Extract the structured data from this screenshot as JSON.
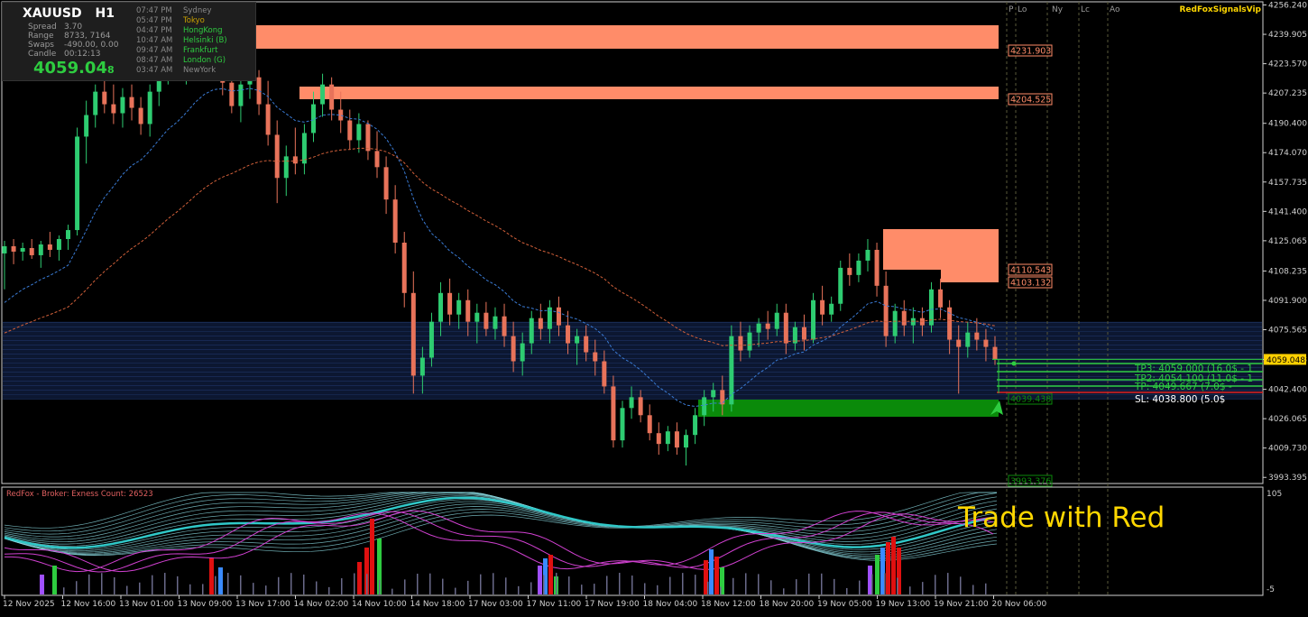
{
  "header": {
    "symbol": "XAUUSD",
    "timeframe": "H1",
    "spread_label": "Spread",
    "spread_value": "3.70",
    "range_label": "Range",
    "range_value": "8733, 7164",
    "swaps_label": "Swaps",
    "swaps_value": "-490.00, 0.00",
    "candle_label": "Candle",
    "candle_value": "00:12:13",
    "price_main": "4059.04",
    "price_small": "8"
  },
  "sessions": [
    {
      "time": "07:47 PM",
      "name": "Sydney",
      "color": "#888888"
    },
    {
      "time": "05:47 PM",
      "name": "Tokyo",
      "color": "#c8a000"
    },
    {
      "time": "04:47 PM",
      "name": "HongKong",
      "color": "#2ecc40"
    },
    {
      "time": "10:47 AM",
      "name": "Helsinki  (B)",
      "color": "#2ecc40"
    },
    {
      "time": "09:47 AM",
      "name": "Frankfurt",
      "color": "#2ecc40"
    },
    {
      "time": "08:47 AM",
      "name": "London  (G)",
      "color": "#2ecc40"
    },
    {
      "time": "03:47 AM",
      "name": "NewYork",
      "color": "#888888"
    }
  ],
  "brand": "RedFoxSignalsVip",
  "session_markers": [
    "P",
    "Lo",
    "Ny",
    "Lc",
    "Ao"
  ],
  "price_axis": [
    "4256.240",
    "4239.905",
    "4223.570",
    "4207.235",
    "4190.400",
    "4174.070",
    "4157.735",
    "4141.400",
    "4125.065",
    "4108.235",
    "4091.900",
    "4075.565",
    "4059.048",
    "4042.400",
    "4026.065",
    "4009.730",
    "3993.395"
  ],
  "current_price": "4059.048",
  "levels": {
    "r1": "4231.903",
    "r2": "4204.525",
    "r3": "4110.543",
    "r4": "4103.132",
    "s1": "4039.438",
    "s2": "3993.376"
  },
  "signals": {
    "tp3": "TP3: 4059.000 (16.0$ - 1",
    "tp2": "TP2: 4054.100 (11.0$ - 1",
    "tp1": "TP: 4049.667 (7.0$ -",
    "sl": "SL: 4038.800 (5.0$"
  },
  "time_axis": [
    "12 Nov 2025",
    "12 Nov 16:00",
    "13 Nov 01:00",
    "13 Nov 09:00",
    "13 Nov 17:00",
    "14 Nov 02:00",
    "14 Nov 10:00",
    "14 Nov 18:00",
    "17 Nov 03:00",
    "17 Nov 11:00",
    "17 Nov 19:00",
    "18 Nov 04:00",
    "18 Nov 12:00",
    "18 Nov 20:00",
    "19 Nov 05:00",
    "19 Nov 13:00",
    "19 Nov 21:00",
    "20 Nov 06:00"
  ],
  "indicator": {
    "label": "RedFox -  Broker: Exness   Count: 26523",
    "scale_top": "105",
    "scale_bottom": "-5",
    "overlay_text": "Trade with Red"
  },
  "colors": {
    "bull": "#2ecc71",
    "bear": "#e8735a",
    "zone": "#ff8c69",
    "demand": "#0a8a0a",
    "fast_ma": "#3a7bd5",
    "slow_ma": "#d2603a"
  },
  "chart_data": {
    "type": "candlestick",
    "ylim": [
      3990,
      4258
    ],
    "candles": [
      [
        4118,
        4125,
        4098,
        4122
      ],
      [
        4122,
        4126,
        4112,
        4119
      ],
      [
        4119,
        4124,
        4114,
        4121
      ],
      [
        4121,
        4126,
        4115,
        4117
      ],
      [
        4117,
        4125,
        4110,
        4123
      ],
      [
        4123,
        4130,
        4116,
        4120
      ],
      [
        4120,
        4128,
        4114,
        4126
      ],
      [
        4126,
        4134,
        4120,
        4131
      ],
      [
        4131,
        4188,
        4128,
        4183
      ],
      [
        4183,
        4203,
        4168,
        4195
      ],
      [
        4195,
        4212,
        4188,
        4208
      ],
      [
        4208,
        4218,
        4196,
        4201
      ],
      [
        4201,
        4212,
        4190,
        4196
      ],
      [
        4196,
        4210,
        4188,
        4205
      ],
      [
        4205,
        4212,
        4192,
        4199
      ],
      [
        4199,
        4205,
        4184,
        4190
      ],
      [
        4190,
        4212,
        4183,
        4208
      ],
      [
        4208,
        4226,
        4200,
        4221
      ],
      [
        4221,
        4230,
        4212,
        4225
      ],
      [
        4225,
        4235,
        4216,
        4218
      ],
      [
        4218,
        4234,
        4212,
        4230
      ],
      [
        4230,
        4246,
        4224,
        4240
      ],
      [
        4240,
        4249,
        4230,
        4235
      ],
      [
        4235,
        4244,
        4220,
        4226
      ],
      [
        4226,
        4236,
        4206,
        4213
      ],
      [
        4213,
        4222,
        4196,
        4200
      ],
      [
        4200,
        4217,
        4191,
        4212
      ],
      [
        4212,
        4222,
        4204,
        4216
      ],
      [
        4216,
        4220,
        4195,
        4201
      ],
      [
        4201,
        4214,
        4178,
        4184
      ],
      [
        4184,
        4192,
        4146,
        4160
      ],
      [
        4160,
        4178,
        4150,
        4172
      ],
      [
        4172,
        4188,
        4162,
        4168
      ],
      [
        4168,
        4190,
        4162,
        4185
      ],
      [
        4185,
        4208,
        4180,
        4201
      ],
      [
        4201,
        4218,
        4194,
        4212
      ],
      [
        4212,
        4216,
        4192,
        4198
      ],
      [
        4198,
        4208,
        4185,
        4192
      ],
      [
        4192,
        4198,
        4176,
        4181
      ],
      [
        4181,
        4196,
        4174,
        4190
      ],
      [
        4190,
        4192,
        4170,
        4175
      ],
      [
        4175,
        4186,
        4160,
        4166
      ],
      [
        4166,
        4172,
        4140,
        4148
      ],
      [
        4148,
        4156,
        4118,
        4124
      ],
      [
        4124,
        4130,
        4088,
        4096
      ],
      [
        4096,
        4108,
        4040,
        4050
      ],
      [
        4050,
        4066,
        4040,
        4060
      ],
      [
        4060,
        4085,
        4055,
        4080
      ],
      [
        4080,
        4102,
        4072,
        4096
      ],
      [
        4096,
        4104,
        4078,
        4084
      ],
      [
        4084,
        4096,
        4076,
        4092
      ],
      [
        4092,
        4098,
        4072,
        4080
      ],
      [
        4080,
        4090,
        4068,
        4085
      ],
      [
        4085,
        4091,
        4072,
        4076
      ],
      [
        4076,
        4088,
        4070,
        4083
      ],
      [
        4083,
        4090,
        4066,
        4072
      ],
      [
        4072,
        4080,
        4052,
        4058
      ],
      [
        4058,
        4074,
        4050,
        4068
      ],
      [
        4068,
        4086,
        4062,
        4082
      ],
      [
        4082,
        4090,
        4070,
        4076
      ],
      [
        4076,
        4092,
        4068,
        4088
      ],
      [
        4088,
        4094,
        4072,
        4078
      ],
      [
        4078,
        4086,
        4062,
        4068
      ],
      [
        4068,
        4076,
        4056,
        4072
      ],
      [
        4072,
        4078,
        4058,
        4063
      ],
      [
        4063,
        4070,
        4050,
        4058
      ],
      [
        4058,
        4064,
        4040,
        4044
      ],
      [
        4044,
        4050,
        4010,
        4014
      ],
      [
        4014,
        4036,
        4010,
        4032
      ],
      [
        4032,
        4044,
        4026,
        4038
      ],
      [
        4038,
        4042,
        4024,
        4028
      ],
      [
        4028,
        4034,
        4014,
        4018
      ],
      [
        4018,
        4024,
        4006,
        4012
      ],
      [
        4012,
        4022,
        4008,
        4019
      ],
      [
        4019,
        4024,
        4006,
        4010
      ],
      [
        4010,
        4020,
        4000,
        4017
      ],
      [
        4017,
        4032,
        4012,
        4028
      ],
      [
        4028,
        4042,
        4022,
        4038
      ],
      [
        4038,
        4046,
        4030,
        4042
      ],
      [
        4042,
        4050,
        4028,
        4034
      ],
      [
        4034,
        4078,
        4030,
        4072
      ],
      [
        4072,
        4080,
        4058,
        4064
      ],
      [
        4064,
        4078,
        4060,
        4074
      ],
      [
        4074,
        4082,
        4066,
        4079
      ],
      [
        4079,
        4086,
        4070,
        4076
      ],
      [
        4076,
        4090,
        4072,
        4085
      ],
      [
        4085,
        4090,
        4062,
        4068
      ],
      [
        4068,
        4080,
        4064,
        4077
      ],
      [
        4077,
        4084,
        4064,
        4070
      ],
      [
        4070,
        4096,
        4068,
        4092
      ],
      [
        4092,
        4100,
        4078,
        4084
      ],
      [
        4084,
        4094,
        4080,
        4090
      ],
      [
        4090,
        4114,
        4086,
        4110
      ],
      [
        4110,
        4118,
        4100,
        4106
      ],
      [
        4106,
        4118,
        4102,
        4114
      ],
      [
        4114,
        4126,
        4108,
        4120
      ],
      [
        4120,
        4124,
        4094,
        4100
      ],
      [
        4100,
        4108,
        4066,
        4072
      ],
      [
        4072,
        4090,
        4068,
        4086
      ],
      [
        4086,
        4092,
        4072,
        4078
      ],
      [
        4078,
        4088,
        4068,
        4082
      ],
      [
        4082,
        4088,
        4072,
        4078
      ],
      [
        4078,
        4102,
        4074,
        4098
      ],
      [
        4098,
        4104,
        4082,
        4088
      ],
      [
        4088,
        4092,
        4062,
        4070
      ],
      [
        4070,
        4078,
        4040,
        4066
      ],
      [
        4066,
        4080,
        4060,
        4074
      ],
      [
        4074,
        4082,
        4064,
        4070
      ],
      [
        4070,
        4076,
        4058,
        4066
      ],
      [
        4066,
        4072,
        4056,
        4059
      ]
    ]
  }
}
